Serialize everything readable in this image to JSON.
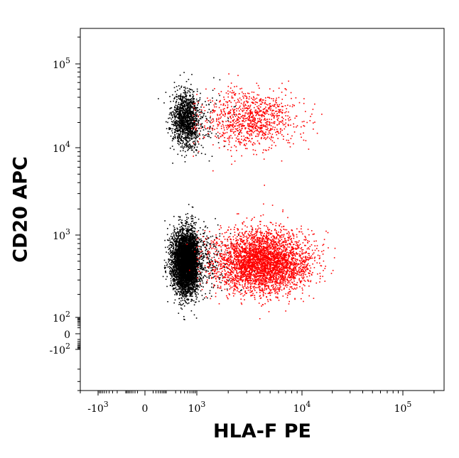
{
  "chart_data": {
    "type": "scatter",
    "title": "",
    "xlabel": "HLA-F PE",
    "ylabel": "CD20 APC",
    "x_scale": "biexponential",
    "y_scale": "biexponential",
    "xlim": [
      -2000,
      250000
    ],
    "ylim": [
      -400,
      250000
    ],
    "grid": false,
    "legend": "none",
    "x_ticks": [
      {
        "value": -1000,
        "base": "-10",
        "exp": "3"
      },
      {
        "value": 0,
        "base": "0",
        "exp": ""
      },
      {
        "value": 1000,
        "base": "10",
        "exp": "3"
      },
      {
        "value": 10000,
        "base": "10",
        "exp": "4"
      },
      {
        "value": 100000,
        "base": "10",
        "exp": "5"
      }
    ],
    "y_ticks": [
      {
        "value": -100,
        "base": "-10",
        "exp": "2"
      },
      {
        "value": 0,
        "base": "0",
        "exp": ""
      },
      {
        "value": 100,
        "base": "10",
        "exp": "2"
      },
      {
        "value": 1000,
        "base": "10",
        "exp": "3"
      },
      {
        "value": 10000,
        "base": "10",
        "exp": "4"
      },
      {
        "value": 100000,
        "base": "10",
        "exp": "5"
      }
    ],
    "series": [
      {
        "color": "#000000",
        "populations": [
          {
            "x_center": 450,
            "y_center": 22000,
            "n_points": 1400
          },
          {
            "x_center": 450,
            "y_center": 500,
            "n_points": 5200
          }
        ]
      },
      {
        "color": "#ff0000",
        "populations": [
          {
            "x_center": 3200,
            "y_center": 22000,
            "n_points": 1000
          },
          {
            "x_center": 4200,
            "y_center": 500,
            "n_points": 3800
          }
        ]
      }
    ]
  }
}
